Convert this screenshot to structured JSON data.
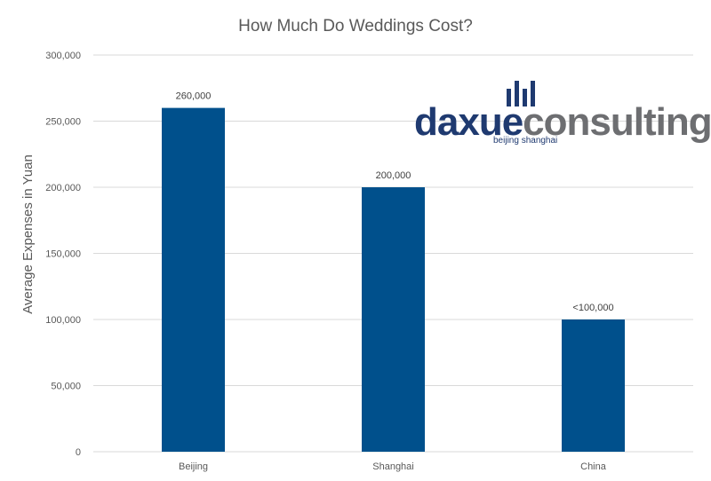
{
  "chart_data": {
    "type": "bar",
    "title": "How Much Do Weddings Cost?",
    "ylabel": "Average Expenses in Yuan",
    "xlabel": "",
    "categories": [
      "Beijing",
      "Shanghai",
      "China"
    ],
    "values": [
      260000,
      200000,
      100000
    ],
    "data_labels": [
      "260,000",
      "200,000",
      "<100,000"
    ],
    "ylim": [
      0,
      300000
    ],
    "yticks": [
      0,
      50000,
      100000,
      150000,
      200000,
      250000,
      300000
    ],
    "ytick_labels": [
      "0",
      "50,000",
      "100,000",
      "150,000",
      "200,000",
      "250,000",
      "300,000"
    ],
    "grid": true,
    "legend": "none",
    "bar_color": "#00508c"
  },
  "logo": {
    "part1": "daxue",
    "part2": "consulting",
    "tagline": "beijing shanghai",
    "color1": "#1f3a70",
    "color2": "#6d6e71"
  }
}
